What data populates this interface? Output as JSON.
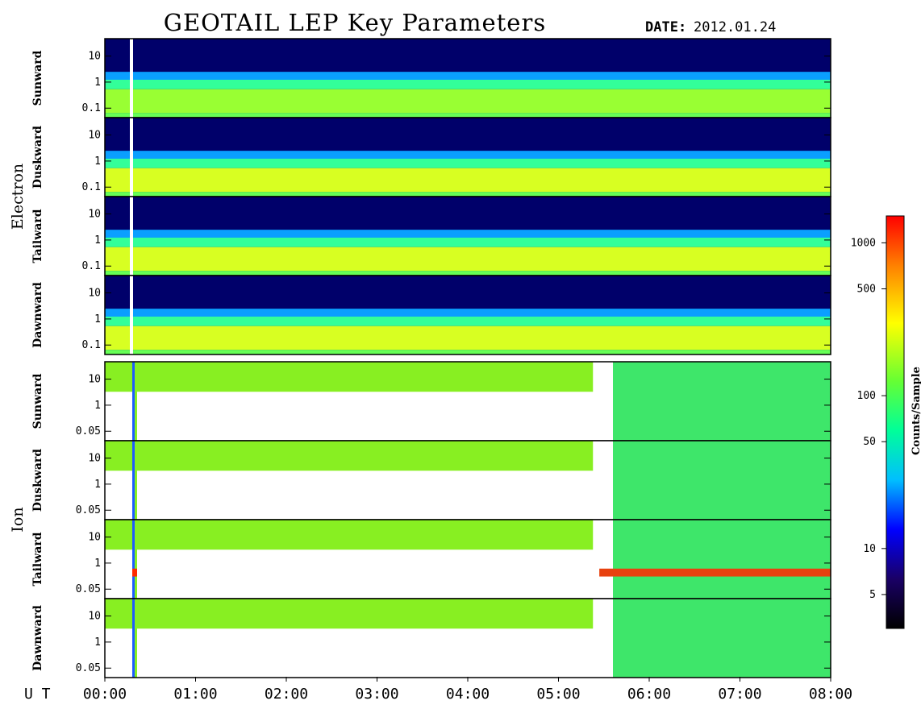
{
  "title": "GEOTAIL LEP Key Parameters",
  "date_label": "DATE:",
  "date_value": "2012.01.24",
  "ut_label": "U T",
  "chart_data": {
    "type": "heatmap",
    "x_ticks": [
      "00:00",
      "01:00",
      "02:00",
      "03:00",
      "04:00",
      "05:00",
      "06:00",
      "07:00",
      "08:00"
    ],
    "x_range_hours": [
      0,
      8
    ],
    "colorbar": {
      "title": "Counts/Sample",
      "scale": "log",
      "range": [
        3,
        1500
      ],
      "ticks": [
        "5",
        "10",
        "50",
        "100",
        "500",
        "1000"
      ],
      "colormap": [
        "#000000",
        "#1a0066",
        "#0000ff",
        "#00bfff",
        "#00ff99",
        "#66ff33",
        "#ffff00",
        "#ff8000",
        "#ff0000"
      ]
    },
    "groups": [
      {
        "name": "Electron",
        "panels": [
          {
            "direction": "Sunward",
            "y_ticks": [
              "10",
              "1",
              "0.1"
            ],
            "y_scale": "log"
          },
          {
            "direction": "Duskward",
            "y_ticks": [
              "10",
              "1",
              "0.1"
            ],
            "y_scale": "log"
          },
          {
            "direction": "Tailward",
            "y_ticks": [
              "10",
              "1",
              "0.1"
            ],
            "y_scale": "log"
          },
          {
            "direction": "Dawnward",
            "y_ticks": [
              "10",
              "1",
              "0.1"
            ],
            "y_scale": "log"
          }
        ]
      },
      {
        "name": "Ion",
        "panels": [
          {
            "direction": "Sunward",
            "y_ticks": [
              "10",
              "1",
              "0.05"
            ],
            "y_scale": "log"
          },
          {
            "direction": "Duskward",
            "y_ticks": [
              "10",
              "1",
              "0.05"
            ],
            "y_scale": "log"
          },
          {
            "direction": "Tailward",
            "y_ticks": [
              "10",
              "1",
              "0.05"
            ],
            "y_scale": "log"
          },
          {
            "direction": "Dawnward",
            "y_ticks": [
              "10",
              "1",
              "0.05"
            ],
            "y_scale": "log"
          }
        ]
      }
    ]
  }
}
